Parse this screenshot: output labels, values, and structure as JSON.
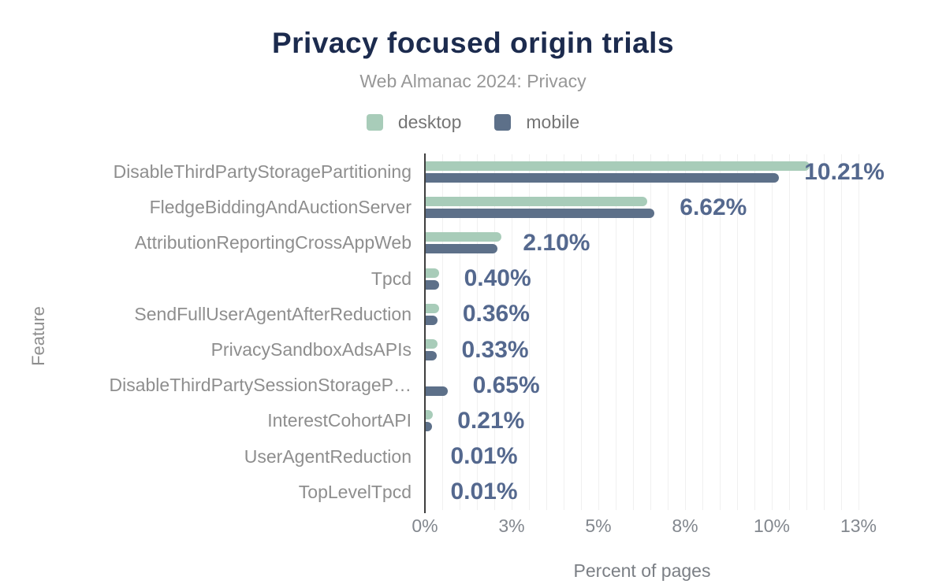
{
  "header": {
    "title": "Privacy focused origin trials",
    "subtitle": "Web Almanac 2024: Privacy"
  },
  "legend": [
    {
      "label": "desktop",
      "color": "#a8ccb9"
    },
    {
      "label": "mobile",
      "color": "#5d7089"
    }
  ],
  "colors": {
    "title": "#1c2b4e",
    "subtitle_text": "#979797",
    "value_label": "#54688e",
    "category_label": "#8e8e8e",
    "gridline": "#f0f0f0",
    "axis_line": "#3f3f3f"
  },
  "chart_data": {
    "type": "bar",
    "orientation": "horizontal",
    "title": "Privacy focused origin trials",
    "subtitle": "Web Almanac 2024: Privacy",
    "xlabel": "Percent of pages",
    "ylabel": "Feature",
    "grid": "vertical-minor-every-0.5",
    "legend_position": "top-center",
    "xlim": [
      0,
      12.5
    ],
    "x_ticks": [
      {
        "value": 0,
        "label": "0%"
      },
      {
        "value": 2.5,
        "label": "3%"
      },
      {
        "value": 5,
        "label": "5%"
      },
      {
        "value": 7.5,
        "label": "8%"
      },
      {
        "value": 10,
        "label": "10%"
      },
      {
        "value": 12.5,
        "label": "13%"
      }
    ],
    "categories": [
      "DisableThirdPartyStoragePartitioning",
      "FledgeBiddingAndAuctionServer",
      "AttributionReportingCrossAppWeb",
      "Tpcd",
      "SendFullUserAgentAfterReduction",
      "PrivacySandboxAdsAPIs",
      "DisableThirdPartySessionStorageP…",
      "InterestCohortAPI",
      "UserAgentReduction",
      "TopLevelTpcd"
    ],
    "series": [
      {
        "name": "desktop",
        "values": [
          11.1,
          6.4,
          2.2,
          0.42,
          0.4,
          0.37,
          0.0,
          0.22,
          0.0,
          0.0
        ]
      },
      {
        "name": "mobile",
        "values": [
          10.21,
          6.62,
          2.1,
          0.4,
          0.36,
          0.33,
          0.65,
          0.21,
          0.01,
          0.01
        ]
      }
    ],
    "value_labels": [
      "10.21%",
      "6.62%",
      "2.10%",
      "0.40%",
      "0.36%",
      "0.33%",
      "0.65%",
      "0.21%",
      "0.01%",
      "0.01%"
    ],
    "value_labels_series": "mobile"
  }
}
